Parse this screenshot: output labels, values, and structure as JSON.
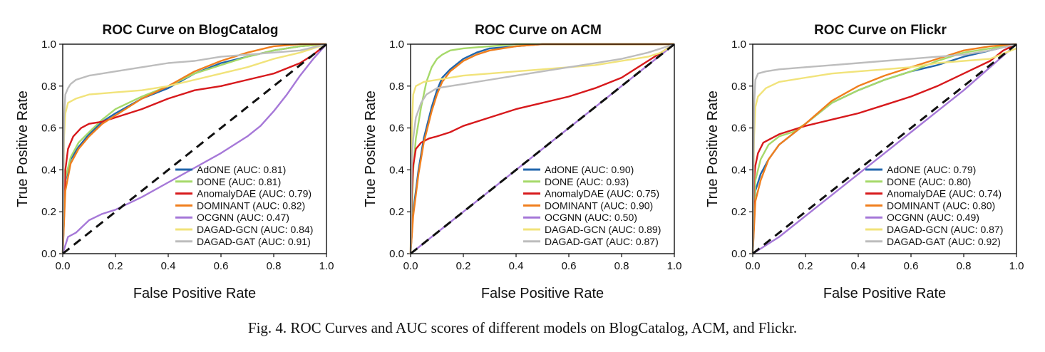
{
  "caption": "Fig. 4.  ROC Curves and AUC scores of different models on BlogCatalog, ACM, and Flickr.",
  "chart_data": [
    {
      "type": "line",
      "title": "ROC Curve on BlogCatalog",
      "xlabel": "False Positive Rate",
      "ylabel": "True Positive Rate",
      "xlim": [
        0,
        1
      ],
      "ylim": [
        0,
        1
      ],
      "xticks": [
        "0.0",
        "0.2",
        "0.4",
        "0.6",
        "0.8",
        "1.0"
      ],
      "yticks": [
        "0.0",
        "0.2",
        "0.4",
        "0.6",
        "0.8",
        "1.0"
      ],
      "legend_position": "lower-right",
      "diagonal": true,
      "series": [
        {
          "name": "AdONE",
          "label": "AdONE (AUC: 0.81)",
          "color": "#2166ac",
          "x": [
            0,
            0.01,
            0.03,
            0.06,
            0.1,
            0.15,
            0.2,
            0.3,
            0.4,
            0.5,
            0.6,
            0.7,
            0.8,
            0.9,
            1
          ],
          "y": [
            0,
            0.35,
            0.45,
            0.51,
            0.57,
            0.63,
            0.67,
            0.74,
            0.79,
            0.86,
            0.91,
            0.94,
            0.97,
            0.99,
            1
          ]
        },
        {
          "name": "DONE",
          "label": "DONE (AUC: 0.81)",
          "color": "#a6d96a",
          "x": [
            0,
            0.01,
            0.03,
            0.06,
            0.1,
            0.15,
            0.2,
            0.3,
            0.4,
            0.5,
            0.6,
            0.7,
            0.8,
            0.9,
            1
          ],
          "y": [
            0,
            0.36,
            0.46,
            0.53,
            0.58,
            0.64,
            0.69,
            0.75,
            0.8,
            0.86,
            0.9,
            0.94,
            0.97,
            0.99,
            1
          ]
        },
        {
          "name": "AnomalyDAE",
          "label": "AnomalyDAE (AUC: 0.79)",
          "color": "#d7191c",
          "x": [
            0,
            0.01,
            0.02,
            0.04,
            0.07,
            0.1,
            0.15,
            0.2,
            0.3,
            0.4,
            0.5,
            0.6,
            0.7,
            0.8,
            0.9,
            0.95,
            1
          ],
          "y": [
            0,
            0.4,
            0.5,
            0.56,
            0.6,
            0.62,
            0.63,
            0.65,
            0.69,
            0.74,
            0.78,
            0.8,
            0.83,
            0.86,
            0.91,
            0.95,
            1
          ]
        },
        {
          "name": "DOMINANT",
          "label": "DOMINANT (AUC: 0.82)",
          "color": "#f07f1e",
          "x": [
            0,
            0.01,
            0.03,
            0.06,
            0.1,
            0.15,
            0.2,
            0.3,
            0.4,
            0.5,
            0.6,
            0.7,
            0.8,
            0.9,
            1
          ],
          "y": [
            0,
            0.3,
            0.43,
            0.5,
            0.56,
            0.62,
            0.66,
            0.74,
            0.8,
            0.87,
            0.92,
            0.96,
            0.99,
            1,
            1
          ]
        },
        {
          "name": "OCGNN",
          "label": "OCGNN (AUC: 0.47)",
          "color": "#a678d8",
          "x": [
            0,
            0.02,
            0.05,
            0.1,
            0.15,
            0.2,
            0.3,
            0.4,
            0.5,
            0.6,
            0.7,
            0.75,
            0.8,
            0.85,
            0.9,
            0.95,
            1
          ],
          "y": [
            0,
            0.08,
            0.1,
            0.16,
            0.19,
            0.21,
            0.27,
            0.34,
            0.41,
            0.48,
            0.56,
            0.61,
            0.68,
            0.76,
            0.85,
            0.93,
            1
          ]
        },
        {
          "name": "DAGAD-GCN",
          "label": "DAGAD-GCN (AUC: 0.84)",
          "color": "#f1e37a",
          "x": [
            0,
            0.005,
            0.01,
            0.02,
            0.05,
            0.1,
            0.2,
            0.3,
            0.4,
            0.5,
            0.6,
            0.7,
            0.8,
            0.9,
            1
          ],
          "y": [
            0,
            0.55,
            0.67,
            0.72,
            0.74,
            0.76,
            0.77,
            0.78,
            0.8,
            0.83,
            0.86,
            0.89,
            0.93,
            0.96,
            1
          ]
        },
        {
          "name": "DAGAD-GAT",
          "label": "DAGAD-GAT (AUC: 0.91)",
          "color": "#bdbdbd",
          "x": [
            0,
            0.005,
            0.01,
            0.02,
            0.03,
            0.05,
            0.1,
            0.2,
            0.3,
            0.4,
            0.5,
            0.6,
            0.7,
            0.8,
            0.9,
            1
          ],
          "y": [
            0,
            0.65,
            0.76,
            0.79,
            0.81,
            0.83,
            0.85,
            0.87,
            0.89,
            0.91,
            0.92,
            0.94,
            0.95,
            0.96,
            0.97,
            1
          ]
        }
      ]
    },
    {
      "type": "line",
      "title": "ROC Curve on ACM",
      "xlabel": "False Positive Rate",
      "ylabel": "True Positive Rate",
      "xlim": [
        0,
        1
      ],
      "ylim": [
        0,
        1
      ],
      "xticks": [
        "0.0",
        "0.2",
        "0.4",
        "0.6",
        "0.8",
        "1.0"
      ],
      "yticks": [
        "0.0",
        "0.2",
        "0.4",
        "0.6",
        "0.8",
        "1.0"
      ],
      "legend_position": "lower-right",
      "diagonal": true,
      "series": [
        {
          "name": "AdONE",
          "label": "AdONE (AUC: 0.90)",
          "color": "#2166ac",
          "x": [
            0,
            0.01,
            0.03,
            0.05,
            0.08,
            0.1,
            0.12,
            0.15,
            0.2,
            0.25,
            0.3,
            0.4,
            0.5,
            0.6,
            0.8,
            1
          ],
          "y": [
            0,
            0.2,
            0.4,
            0.55,
            0.7,
            0.78,
            0.84,
            0.88,
            0.93,
            0.96,
            0.98,
            0.99,
            1,
            1,
            1,
            1
          ]
        },
        {
          "name": "DONE",
          "label": "DONE (AUC: 0.93)",
          "color": "#a6d96a",
          "x": [
            0,
            0.01,
            0.02,
            0.04,
            0.06,
            0.08,
            0.1,
            0.12,
            0.15,
            0.2,
            0.3,
            0.4,
            0.6,
            1
          ],
          "y": [
            0,
            0.4,
            0.55,
            0.7,
            0.82,
            0.89,
            0.93,
            0.95,
            0.97,
            0.98,
            0.99,
            1,
            1,
            1
          ]
        },
        {
          "name": "AnomalyDAE",
          "label": "AnomalyDAE (AUC: 0.75)",
          "color": "#d7191c",
          "x": [
            0,
            0.005,
            0.01,
            0.02,
            0.04,
            0.07,
            0.1,
            0.15,
            0.2,
            0.3,
            0.4,
            0.5,
            0.6,
            0.7,
            0.8,
            0.9,
            1
          ],
          "y": [
            0,
            0.3,
            0.42,
            0.5,
            0.53,
            0.55,
            0.56,
            0.58,
            0.61,
            0.65,
            0.69,
            0.72,
            0.75,
            0.79,
            0.84,
            0.92,
            1
          ]
        },
        {
          "name": "DOMINANT",
          "label": "DOMINANT (AUC: 0.90)",
          "color": "#f07f1e",
          "x": [
            0,
            0.01,
            0.03,
            0.05,
            0.08,
            0.1,
            0.12,
            0.15,
            0.2,
            0.25,
            0.3,
            0.4,
            0.5,
            0.6,
            0.8,
            1
          ],
          "y": [
            0,
            0.18,
            0.38,
            0.53,
            0.68,
            0.76,
            0.82,
            0.87,
            0.92,
            0.95,
            0.97,
            0.99,
            1,
            1,
            1,
            1
          ]
        },
        {
          "name": "OCGNN",
          "label": "OCGNN (AUC: 0.50)",
          "color": "#a678d8",
          "x": [
            0,
            1
          ],
          "y": [
            0,
            1
          ]
        },
        {
          "name": "DAGAD-GCN",
          "label": "DAGAD-GCN (AUC: 0.89)",
          "color": "#f1e37a",
          "x": [
            0,
            0.005,
            0.01,
            0.02,
            0.05,
            0.1,
            0.2,
            0.3,
            0.4,
            0.5,
            0.6,
            0.7,
            0.8,
            0.9,
            0.95,
            1
          ],
          "y": [
            0,
            0.6,
            0.76,
            0.8,
            0.82,
            0.83,
            0.85,
            0.86,
            0.87,
            0.88,
            0.89,
            0.9,
            0.92,
            0.94,
            0.96,
            1
          ]
        },
        {
          "name": "DAGAD-GAT",
          "label": "DAGAD-GAT (AUC: 0.87)",
          "color": "#bdbdbd",
          "x": [
            0,
            0.005,
            0.01,
            0.02,
            0.04,
            0.06,
            0.1,
            0.15,
            0.2,
            0.3,
            0.4,
            0.5,
            0.6,
            0.7,
            0.8,
            0.9,
            1
          ],
          "y": [
            0,
            0.45,
            0.55,
            0.65,
            0.72,
            0.76,
            0.79,
            0.8,
            0.81,
            0.83,
            0.85,
            0.87,
            0.89,
            0.91,
            0.93,
            0.96,
            1
          ]
        }
      ]
    },
    {
      "type": "line",
      "title": "ROC Curve on Flickr",
      "xlabel": "False Positive Rate",
      "ylabel": "True Positive Rate",
      "xlim": [
        0,
        1
      ],
      "ylim": [
        0,
        1
      ],
      "xticks": [
        "0.0",
        "0.2",
        "0.4",
        "0.6",
        "0.8",
        "1.0"
      ],
      "yticks": [
        "0.0",
        "0.2",
        "0.4",
        "0.6",
        "0.8",
        "1.0"
      ],
      "legend_position": "lower-right",
      "diagonal": true,
      "series": [
        {
          "name": "AdONE",
          "label": "AdONE (AUC: 0.79)",
          "color": "#2166ac",
          "x": [
            0,
            0.01,
            0.03,
            0.06,
            0.1,
            0.15,
            0.2,
            0.3,
            0.4,
            0.5,
            0.6,
            0.7,
            0.8,
            0.9,
            1
          ],
          "y": [
            0,
            0.3,
            0.38,
            0.45,
            0.52,
            0.57,
            0.62,
            0.72,
            0.78,
            0.83,
            0.87,
            0.9,
            0.94,
            0.97,
            1
          ]
        },
        {
          "name": "DONE",
          "label": "DONE (AUC: 0.80)",
          "color": "#a6d96a",
          "x": [
            0,
            0.01,
            0.03,
            0.06,
            0.1,
            0.15,
            0.2,
            0.3,
            0.4,
            0.5,
            0.6,
            0.7,
            0.8,
            0.9,
            1
          ],
          "y": [
            0,
            0.35,
            0.45,
            0.52,
            0.56,
            0.58,
            0.62,
            0.72,
            0.78,
            0.83,
            0.87,
            0.92,
            0.96,
            0.98,
            1
          ]
        },
        {
          "name": "AnomalyDAE",
          "label": "AnomalyDAE (AUC: 0.74)",
          "color": "#d7191c",
          "x": [
            0,
            0.005,
            0.01,
            0.02,
            0.04,
            0.07,
            0.1,
            0.15,
            0.2,
            0.3,
            0.4,
            0.5,
            0.6,
            0.7,
            0.8,
            0.9,
            0.95,
            1
          ],
          "y": [
            0,
            0.35,
            0.42,
            0.48,
            0.53,
            0.55,
            0.57,
            0.59,
            0.61,
            0.64,
            0.67,
            0.71,
            0.75,
            0.8,
            0.86,
            0.92,
            0.97,
            1
          ]
        },
        {
          "name": "DOMINANT",
          "label": "DOMINANT (AUC: 0.80)",
          "color": "#f07f1e",
          "x": [
            0,
            0.01,
            0.03,
            0.06,
            0.1,
            0.15,
            0.2,
            0.3,
            0.4,
            0.5,
            0.6,
            0.7,
            0.8,
            0.9,
            1
          ],
          "y": [
            0,
            0.25,
            0.35,
            0.45,
            0.52,
            0.57,
            0.62,
            0.73,
            0.8,
            0.85,
            0.89,
            0.93,
            0.97,
            0.99,
            1
          ]
        },
        {
          "name": "OCGNN",
          "label": "OCGNN (AUC: 0.49)",
          "color": "#a678d8",
          "x": [
            0,
            0.1,
            0.2,
            0.3,
            0.4,
            0.5,
            0.6,
            0.7,
            0.8,
            0.9,
            1
          ],
          "y": [
            0,
            0.08,
            0.18,
            0.28,
            0.38,
            0.48,
            0.58,
            0.68,
            0.78,
            0.89,
            1
          ]
        },
        {
          "name": "DAGAD-GCN",
          "label": "DAGAD-GCN (AUC: 0.87)",
          "color": "#f1e37a",
          "x": [
            0,
            0.005,
            0.01,
            0.02,
            0.05,
            0.1,
            0.2,
            0.3,
            0.4,
            0.5,
            0.6,
            0.7,
            0.8,
            0.9,
            1
          ],
          "y": [
            0,
            0.55,
            0.7,
            0.75,
            0.79,
            0.82,
            0.84,
            0.86,
            0.87,
            0.88,
            0.89,
            0.91,
            0.92,
            0.93,
            0.98
          ]
        },
        {
          "name": "DAGAD-GAT",
          "label": "DAGAD-GAT (AUC: 0.92)",
          "color": "#bdbdbd",
          "x": [
            0,
            0.005,
            0.01,
            0.02,
            0.05,
            0.1,
            0.2,
            0.3,
            0.4,
            0.5,
            0.6,
            0.7,
            0.8,
            0.9,
            1
          ],
          "y": [
            0,
            0.7,
            0.83,
            0.86,
            0.87,
            0.88,
            0.89,
            0.9,
            0.91,
            0.92,
            0.93,
            0.94,
            0.95,
            0.97,
            1
          ]
        }
      ]
    }
  ]
}
